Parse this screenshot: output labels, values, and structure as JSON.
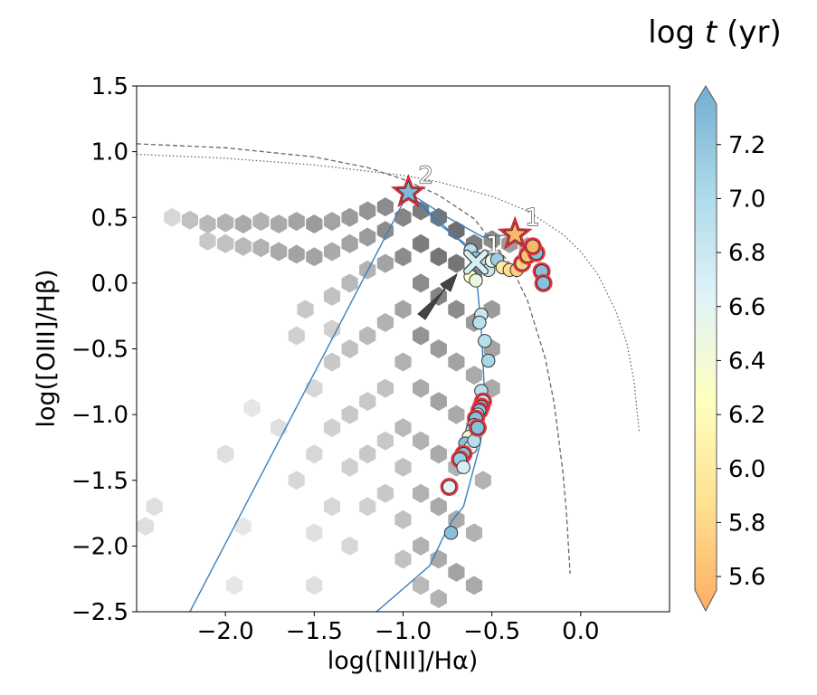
{
  "chart_data": {
    "type": "scatter",
    "xlabel": "log([NII]/Hα)",
    "ylabel": "log([OIII]/Hβ)",
    "xlim": [
      -2.5,
      0.5
    ],
    "ylim": [
      -2.5,
      1.5
    ],
    "xticks": [
      -2.0,
      -1.5,
      -1.0,
      -0.5,
      0.0
    ],
    "xtick_labels": [
      "−2.0",
      "−1.5",
      "−1.0",
      "−0.5",
      "0.0"
    ],
    "yticks": [
      -2.5,
      -2.0,
      -1.5,
      -1.0,
      -0.5,
      0.0,
      0.5,
      1.0,
      1.5
    ],
    "ytick_labels": [
      "−2.5",
      "−2.0",
      "−1.5",
      "−1.0",
      "−0.5",
      "0.0",
      "0.5",
      "1.0",
      "1.5"
    ],
    "grid": false,
    "colorbar": {
      "title": "log t (yr)",
      "title_plain": "log ",
      "title_italic": "t",
      "title_unit": " (yr)",
      "range": [
        5.55,
        7.35
      ],
      "ticks": [
        5.6,
        5.8,
        6.0,
        6.2,
        6.4,
        6.6,
        6.8,
        7.0,
        7.2
      ],
      "tick_labels": [
        "5.6",
        "5.8",
        "6.0",
        "6.2",
        "6.4",
        "6.6",
        "6.8",
        "7.0",
        "7.2"
      ],
      "colors": [
        "#fdae61",
        "#fee090",
        "#ffffbf",
        "#e0f3f8",
        "#abd9e9",
        "#74add1"
      ]
    },
    "demarcation_lines": [
      {
        "style": "dashed",
        "x": [
          -2.5,
          -2.0,
          -1.5,
          -1.2,
          -1.0,
          -0.8,
          -0.6,
          -0.4,
          -0.3,
          -0.2,
          -0.15,
          -0.1,
          -0.08,
          -0.06
        ],
        "y": [
          1.06,
          1.03,
          0.96,
          0.88,
          0.79,
          0.67,
          0.49,
          0.15,
          -0.13,
          -0.57,
          -0.91,
          -1.44,
          -1.75,
          -2.21
        ]
      },
      {
        "style": "dotted",
        "x": [
          -2.5,
          -2.0,
          -1.5,
          -1.0,
          -0.8,
          -0.5,
          -0.3,
          -0.1,
          0.0,
          0.1,
          0.2,
          0.26,
          0.3,
          0.33
        ],
        "y": [
          0.98,
          0.95,
          0.9,
          0.82,
          0.77,
          0.66,
          0.55,
          0.37,
          0.24,
          0.06,
          -0.22,
          -0.46,
          -0.74,
          -1.14
        ]
      }
    ],
    "annotations": [
      {
        "label": "2",
        "x": -0.97,
        "y": 0.69,
        "marker": "star",
        "value": 7.25
      },
      {
        "label": "1",
        "x": -0.37,
        "y": 0.37,
        "marker": "star",
        "value": 5.6
      },
      {
        "label": "1",
        "x": -0.59,
        "y": 0.16,
        "marker": "x",
        "value": 6.7
      }
    ],
    "track_lines": [
      {
        "x": [
          -0.97,
          -2.2
        ],
        "y": [
          0.69,
          -2.5
        ]
      },
      {
        "x": [
          -0.97,
          -0.6,
          -0.58,
          -0.56,
          -0.55,
          -0.54,
          -0.55,
          -0.57,
          -0.6,
          -0.63,
          -0.66,
          -0.72,
          -0.78,
          -0.85,
          -1.15
        ],
        "y": [
          0.69,
          0.22,
          -0.05,
          -0.35,
          -0.6,
          -0.9,
          -1.1,
          -1.25,
          -1.4,
          -1.55,
          -1.7,
          -1.8,
          -1.95,
          -2.15,
          -2.5
        ]
      },
      {
        "x": [
          -0.97,
          -0.75,
          -0.55,
          -0.37
        ],
        "y": [
          0.69,
          0.5,
          0.35,
          0.37
        ]
      },
      {
        "x": [
          -0.97,
          -0.8,
          -0.65,
          -0.59
        ],
        "y": [
          0.69,
          0.45,
          0.3,
          0.16
        ]
      }
    ],
    "series": [
      {
        "name": "",
        "x": [
          -0.62,
          -0.59,
          -0.55,
          -0.52,
          -0.5,
          -0.47,
          -0.44,
          -0.4,
          -0.36,
          -0.33,
          -0.3,
          -0.25,
          -0.22,
          -0.21,
          -0.27
        ],
        "y": [
          0.25,
          0.19,
          0.15,
          0.1,
          0.17,
          0.18,
          0.12,
          0.1,
          0.1,
          0.15,
          0.21,
          0.23,
          0.09,
          0.0,
          0.28
        ],
        "values": [
          6.9,
          7.2,
          6.9,
          6.8,
          6.5,
          7.1,
          6.0,
          5.9,
          5.8,
          5.8,
          5.7,
          7.2,
          7.2,
          7.2,
          5.6
        ],
        "highlight": [
          false,
          false,
          false,
          false,
          false,
          false,
          false,
          false,
          false,
          true,
          true,
          true,
          true,
          true,
          true
        ]
      },
      {
        "name": "",
        "x": [
          -0.62,
          -0.59,
          -0.56,
          -0.57,
          -0.54,
          -0.52,
          -0.56,
          -0.55,
          -0.56,
          -0.57,
          -0.58,
          -0.59,
          -0.6,
          -0.61,
          -0.63,
          -0.65,
          -0.62,
          -0.6,
          -0.58
        ],
        "y": [
          0.05,
          0.02,
          -0.24,
          -0.3,
          -0.44,
          -0.59,
          -0.82,
          -0.9,
          -0.94,
          -0.97,
          -1.0,
          -1.03,
          -1.08,
          -1.12,
          -1.17,
          -1.22,
          -1.25,
          -1.2,
          -1.1
        ],
        "values": [
          6.3,
          6.5,
          6.8,
          6.9,
          6.9,
          7.0,
          6.9,
          6.8,
          7.2,
          7.2,
          6.8,
          7.2,
          7.1,
          6.9,
          6.4,
          7.2,
          6.6,
          6.9,
          7.2
        ],
        "highlight": [
          false,
          false,
          false,
          false,
          false,
          false,
          false,
          true,
          true,
          true,
          false,
          true,
          false,
          false,
          false,
          false,
          false,
          false,
          true
        ]
      },
      {
        "name": "",
        "x": [
          -0.66,
          -0.68,
          -0.74,
          -0.66,
          -0.73
        ],
        "y": [
          -1.3,
          -1.34,
          -1.55,
          -1.4,
          -1.9
        ],
        "values": [
          7.2,
          7.1,
          6.6,
          6.7,
          7.2
        ],
        "highlight": [
          true,
          true,
          true,
          false,
          false
        ]
      }
    ],
    "hexbin_density": [
      {
        "x": -2.3,
        "y": 0.5,
        "v": 0.2
      },
      {
        "x": -2.2,
        "y": 0.48,
        "v": 0.35
      },
      {
        "x": -2.1,
        "y": 0.45,
        "v": 0.4
      },
      {
        "x": -2.0,
        "y": 0.46,
        "v": 0.45
      },
      {
        "x": -1.9,
        "y": 0.45,
        "v": 0.5
      },
      {
        "x": -1.8,
        "y": 0.47,
        "v": 0.45
      },
      {
        "x": -1.7,
        "y": 0.45,
        "v": 0.5
      },
      {
        "x": -1.6,
        "y": 0.47,
        "v": 0.55
      },
      {
        "x": -1.5,
        "y": 0.45,
        "v": 0.6
      },
      {
        "x": -1.4,
        "y": 0.47,
        "v": 0.55
      },
      {
        "x": -1.3,
        "y": 0.5,
        "v": 0.6
      },
      {
        "x": -1.2,
        "y": 0.55,
        "v": 0.65
      },
      {
        "x": -1.1,
        "y": 0.58,
        "v": 0.7
      },
      {
        "x": -2.1,
        "y": 0.32,
        "v": 0.3
      },
      {
        "x": -2.0,
        "y": 0.3,
        "v": 0.35
      },
      {
        "x": -1.9,
        "y": 0.28,
        "v": 0.4
      },
      {
        "x": -1.8,
        "y": 0.27,
        "v": 0.45
      },
      {
        "x": -1.7,
        "y": 0.24,
        "v": 0.5
      },
      {
        "x": -1.6,
        "y": 0.22,
        "v": 0.55
      },
      {
        "x": -1.5,
        "y": 0.2,
        "v": 0.55
      },
      {
        "x": -1.4,
        "y": 0.24,
        "v": 0.5
      },
      {
        "x": -1.3,
        "y": 0.3,
        "v": 0.55
      },
      {
        "x": -1.2,
        "y": 0.35,
        "v": 0.6
      },
      {
        "x": -1.1,
        "y": 0.4,
        "v": 0.7
      },
      {
        "x": -1.0,
        "y": 0.5,
        "v": 0.75
      },
      {
        "x": -0.9,
        "y": 0.55,
        "v": 0.8
      },
      {
        "x": -0.8,
        "y": 0.5,
        "v": 0.85
      },
      {
        "x": -0.7,
        "y": 0.4,
        "v": 0.9
      },
      {
        "x": -0.6,
        "y": 0.3,
        "v": 0.8
      },
      {
        "x": -0.5,
        "y": 0.33,
        "v": 0.7
      },
      {
        "x": -0.4,
        "y": 0.3,
        "v": 0.6
      },
      {
        "x": -0.3,
        "y": 0.28,
        "v": 0.5
      },
      {
        "x": -0.9,
        "y": 0.3,
        "v": 0.8
      },
      {
        "x": -0.8,
        "y": 0.2,
        "v": 0.85
      },
      {
        "x": -0.7,
        "y": 0.15,
        "v": 0.85
      },
      {
        "x": -0.6,
        "y": 0.05,
        "v": 0.75
      },
      {
        "x": -1.0,
        "y": 0.2,
        "v": 0.7
      },
      {
        "x": -1.1,
        "y": 0.15,
        "v": 0.55
      },
      {
        "x": -1.2,
        "y": 0.1,
        "v": 0.45
      },
      {
        "x": -1.3,
        "y": 0.0,
        "v": 0.4
      },
      {
        "x": -1.4,
        "y": -0.1,
        "v": 0.35
      },
      {
        "x": -0.9,
        "y": 0.0,
        "v": 0.7
      },
      {
        "x": -0.8,
        "y": -0.1,
        "v": 0.75
      },
      {
        "x": -0.7,
        "y": -0.2,
        "v": 0.7
      },
      {
        "x": -0.6,
        "y": -0.3,
        "v": 0.6
      },
      {
        "x": -1.0,
        "y": -0.2,
        "v": 0.55
      },
      {
        "x": -1.1,
        "y": -0.3,
        "v": 0.45
      },
      {
        "x": -1.2,
        "y": -0.4,
        "v": 0.4
      },
      {
        "x": -1.3,
        "y": -0.5,
        "v": 0.35
      },
      {
        "x": -1.4,
        "y": -0.6,
        "v": 0.3
      },
      {
        "x": -0.9,
        "y": -0.4,
        "v": 0.65
      },
      {
        "x": -0.8,
        "y": -0.5,
        "v": 0.6
      },
      {
        "x": -0.7,
        "y": -0.6,
        "v": 0.55
      },
      {
        "x": -0.6,
        "y": -0.7,
        "v": 0.5
      },
      {
        "x": -1.0,
        "y": -0.6,
        "v": 0.45
      },
      {
        "x": -1.1,
        "y": -0.8,
        "v": 0.35
      },
      {
        "x": -1.2,
        "y": -0.9,
        "v": 0.3
      },
      {
        "x": -1.3,
        "y": -1.0,
        "v": 0.3
      },
      {
        "x": -1.4,
        "y": -1.1,
        "v": 0.25
      },
      {
        "x": -0.9,
        "y": -0.8,
        "v": 0.5
      },
      {
        "x": -0.8,
        "y": -0.9,
        "v": 0.55
      },
      {
        "x": -0.7,
        "y": -1.0,
        "v": 0.5
      },
      {
        "x": -0.6,
        "y": -1.1,
        "v": 0.45
      },
      {
        "x": -1.0,
        "y": -1.1,
        "v": 0.4
      },
      {
        "x": -1.1,
        "y": -1.2,
        "v": 0.3
      },
      {
        "x": -1.2,
        "y": -1.3,
        "v": 0.3
      },
      {
        "x": -1.3,
        "y": -1.4,
        "v": 0.25
      },
      {
        "x": -0.9,
        "y": -1.2,
        "v": 0.45
      },
      {
        "x": -0.8,
        "y": -1.3,
        "v": 0.5
      },
      {
        "x": -0.7,
        "y": -1.4,
        "v": 0.45
      },
      {
        "x": -1.0,
        "y": -1.4,
        "v": 0.35
      },
      {
        "x": -1.1,
        "y": -1.6,
        "v": 0.3
      },
      {
        "x": -1.2,
        "y": -1.7,
        "v": 0.25
      },
      {
        "x": -0.9,
        "y": -1.6,
        "v": 0.45
      },
      {
        "x": -0.8,
        "y": -1.7,
        "v": 0.5
      },
      {
        "x": -0.7,
        "y": -1.8,
        "v": 0.5
      },
      {
        "x": -1.0,
        "y": -1.8,
        "v": 0.35
      },
      {
        "x": -0.9,
        "y": -2.0,
        "v": 0.45
      },
      {
        "x": -0.8,
        "y": -2.1,
        "v": 0.5
      },
      {
        "x": -0.7,
        "y": -2.2,
        "v": 0.55
      },
      {
        "x": -0.6,
        "y": -2.3,
        "v": 0.5
      },
      {
        "x": -1.0,
        "y": -2.1,
        "v": 0.35
      },
      {
        "x": -0.9,
        "y": -2.3,
        "v": 0.4
      },
      {
        "x": -0.8,
        "y": -2.4,
        "v": 0.45
      },
      {
        "x": -1.5,
        "y": -1.3,
        "v": 0.2
      },
      {
        "x": -1.6,
        "y": -1.5,
        "v": 0.2
      },
      {
        "x": -1.4,
        "y": -1.7,
        "v": 0.2
      },
      {
        "x": -1.5,
        "y": -1.9,
        "v": 0.15
      },
      {
        "x": -1.3,
        "y": -2.0,
        "v": 0.2
      },
      {
        "x": -1.6,
        "y": -0.4,
        "v": 0.25
      },
      {
        "x": -1.5,
        "y": -0.8,
        "v": 0.2
      },
      {
        "x": -1.7,
        "y": -1.1,
        "v": 0.15
      },
      {
        "x": -2.0,
        "y": -1.3,
        "v": 0.15
      },
      {
        "x": -2.4,
        "y": -1.7,
        "v": 0.15
      },
      {
        "x": -1.9,
        "y": -1.85,
        "v": 0.1
      },
      {
        "x": -1.95,
        "y": -2.3,
        "v": 0.1
      },
      {
        "x": -2.45,
        "y": -1.85,
        "v": 0.15
      },
      {
        "x": -1.5,
        "y": -2.3,
        "v": 0.15
      },
      {
        "x": -0.5,
        "y": -0.2,
        "v": 0.6
      },
      {
        "x": -0.5,
        "y": -0.5,
        "v": 0.55
      },
      {
        "x": -0.5,
        "y": -0.8,
        "v": 0.5
      },
      {
        "x": -0.55,
        "y": -1.5,
        "v": 0.45
      },
      {
        "x": -0.6,
        "y": -1.9,
        "v": 0.45
      },
      {
        "x": -1.85,
        "y": -0.95,
        "v": 0.1
      },
      {
        "x": -1.55,
        "y": -0.2,
        "v": 0.3
      },
      {
        "x": -1.4,
        "y": -0.35,
        "v": 0.25
      }
    ]
  }
}
